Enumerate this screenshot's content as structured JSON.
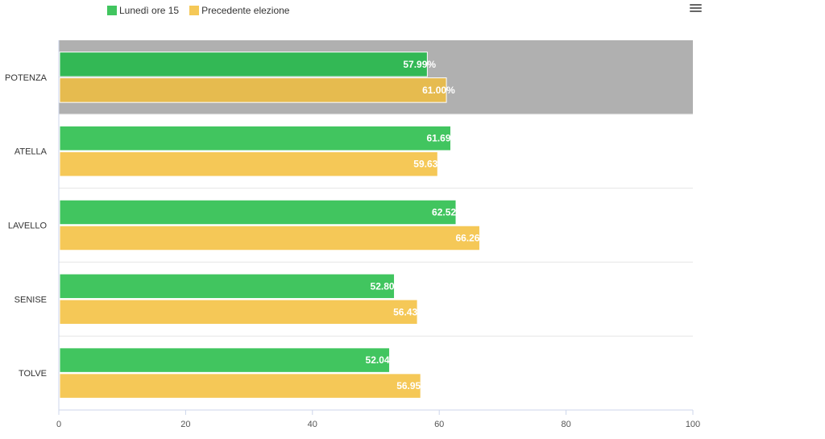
{
  "chart_data": {
    "type": "bar",
    "orientation": "horizontal",
    "categories": [
      "POTENZA",
      "ATELLA",
      "LAVELLO",
      "SENISE",
      "TOLVE"
    ],
    "series": [
      {
        "name": "Lunedì ore 15",
        "color": "#41c55f",
        "values": [
          57.99,
          61.69,
          62.52,
          52.8,
          52.04
        ]
      },
      {
        "name": "Precedente elezione",
        "color": "#f5c857",
        "values": [
          61.0,
          59.63,
          66.26,
          56.43,
          56.95
        ]
      }
    ],
    "data_labels": [
      [
        "57.99%",
        "61.69",
        "62.52",
        "52.80",
        "52.04"
      ],
      [
        "61.00%",
        "59.63",
        "66.26",
        "56.43",
        "56.95"
      ]
    ],
    "xlim": [
      0,
      100
    ],
    "x_ticks": [
      0,
      20,
      40,
      60,
      80,
      100
    ],
    "highlighted_category": "POTENZA",
    "highlight_color": "#b0b0b0",
    "highlight_series_colors": [
      "#33b855",
      "#e6bb4f"
    ],
    "legend_position": "top-left",
    "grid": false
  },
  "toolbar": {
    "menu_icon": "hamburger-menu-icon"
  }
}
